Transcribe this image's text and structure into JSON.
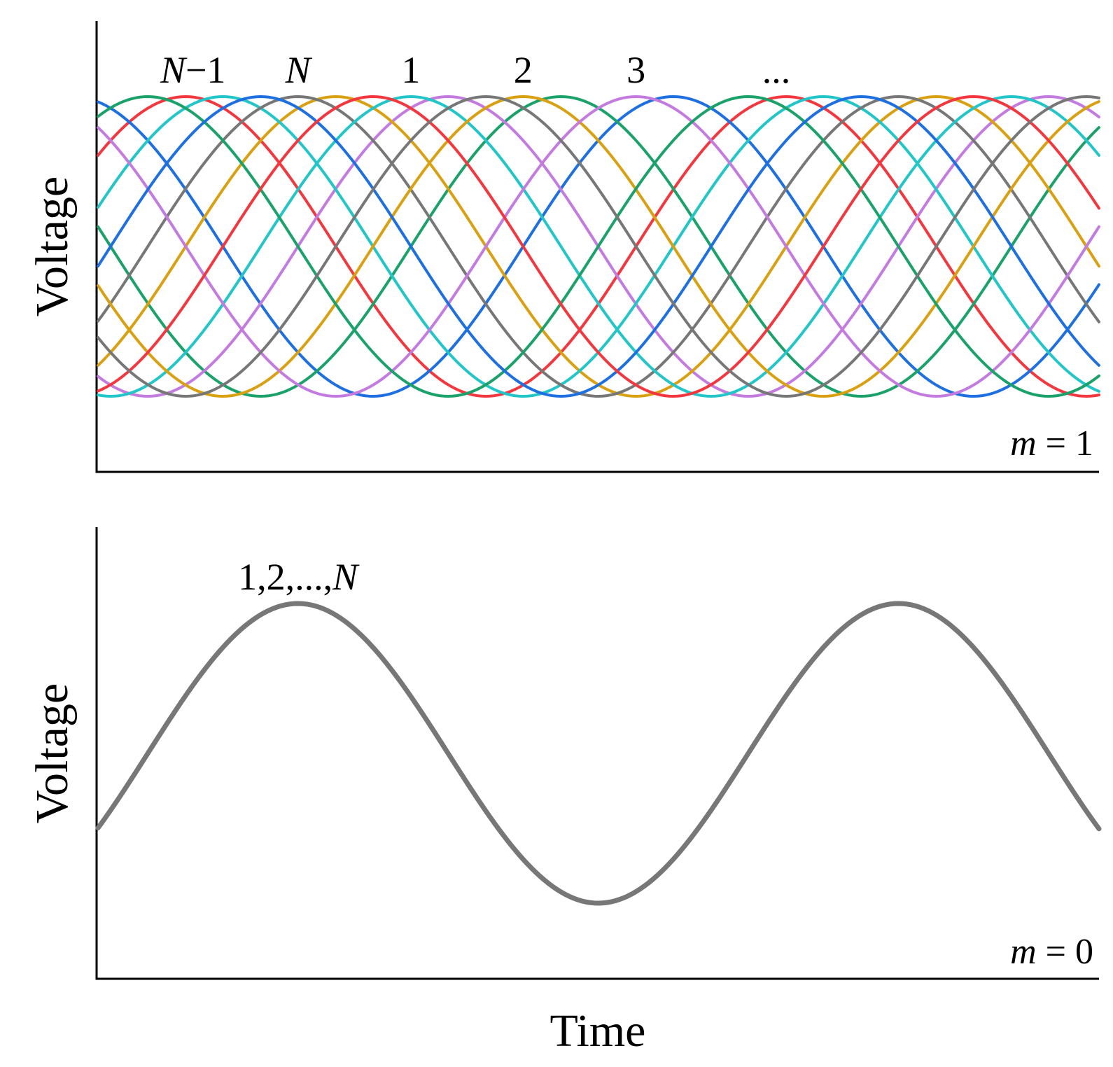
{
  "chart_data": [
    {
      "type": "line",
      "ylabel": "Voltage",
      "xlabel": "",
      "mode_label": {
        "var": "m",
        "rest": " = 1"
      },
      "x_range": [
        0,
        1.667
      ],
      "y_range": [
        -1,
        1
      ],
      "period": 1.0,
      "num_channels": 8,
      "series_phase_labels": [
        {
          "parts": [
            {
              "t": "N",
              "i": true
            },
            {
              "t": "−1",
              "i": false
            }
          ],
          "color_index": 7
        },
        {
          "parts": [
            {
              "t": "N",
              "i": true
            }
          ],
          "color_index": 0
        },
        {
          "parts": [
            {
              "t": "1",
              "i": false
            }
          ],
          "color_index": 1
        },
        {
          "parts": [
            {
              "t": "2",
              "i": false
            }
          ],
          "color_index": 2
        },
        {
          "parts": [
            {
              "t": "3",
              "i": false
            }
          ],
          "color_index": 3
        },
        {
          "parts": [
            {
              "t": "...",
              "i": false
            }
          ],
          "color_index": 4
        }
      ],
      "series": [
        {
          "color": "#777777",
          "peak_x": 0.333
        },
        {
          "color": "#22C5C8",
          "peak_x": 0.521
        },
        {
          "color": "#D9A011",
          "peak_x": 0.708
        },
        {
          "color": "#C47BE0",
          "peak_x": 0.896
        },
        {
          "color": "#1BA26A",
          "peak_x": 1.083
        },
        {
          "color": "#1E6FE0",
          "peak_x": 1.271
        },
        {
          "color": "#F2373F",
          "peak_x": 1.458
        },
        {
          "color": "#777777",
          "peak_x": 1.646
        }
      ],
      "extra_series": [
        {
          "color": "#F2373F",
          "peak_x": 0.146
        },
        {
          "color": "#1E6FE0",
          "peak_x": -0.042
        },
        {
          "color": "#1BA26A",
          "peak_x": -0.229
        },
        {
          "color": "#C47BE0",
          "peak_x": -0.417
        },
        {
          "color": "#D9A011",
          "peak_x": -0.604
        },
        {
          "color": "#22C5C8",
          "peak_x": -0.792
        }
      ]
    },
    {
      "type": "line",
      "ylabel": "Voltage",
      "xlabel": "Time",
      "mode_label": {
        "var": "m",
        "rest": " = 0"
      },
      "x_range": [
        0,
        1.667
      ],
      "y_range": [
        -1,
        1
      ],
      "period": 1.0,
      "series_phase_labels": [
        {
          "parts": [
            {
              "t": "1,2,...,",
              "i": false
            },
            {
              "t": "N",
              "i": true
            }
          ]
        }
      ],
      "series": [
        {
          "color": "#777777",
          "peak_x": 0.333
        }
      ]
    }
  ]
}
